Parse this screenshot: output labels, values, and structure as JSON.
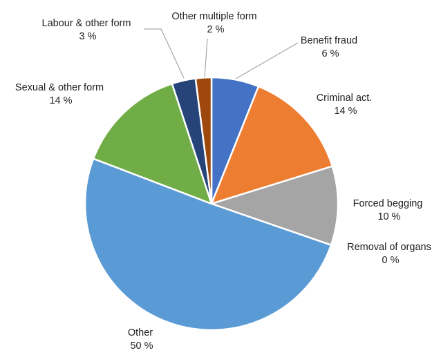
{
  "chart_data": {
    "type": "pie",
    "title": "",
    "legend": "none",
    "start": "top, clockwise",
    "slices": [
      {
        "label": "Benefit fraud",
        "value": 6,
        "display": "6 %",
        "color": "#4472c4"
      },
      {
        "label": "Criminal act.",
        "value": 14,
        "display": "14 %",
        "color": "#ed7d31"
      },
      {
        "label": "Forced begging",
        "value": 10,
        "display": "10 %",
        "color": "#a5a5a5"
      },
      {
        "label": "Removal of organs",
        "value": 0,
        "display": "0 %",
        "color": "#ffc000"
      },
      {
        "label": "Other",
        "value": 50,
        "display": "50 %",
        "color": "#5b9bd5"
      },
      {
        "label": "Sexual & other form",
        "value": 14,
        "display": "14 %",
        "color": "#70ad47"
      },
      {
        "label": "Labour & other form",
        "value": 3,
        "display": "3 %",
        "color": "#264478"
      },
      {
        "label": "Other multiple form",
        "value": 2,
        "display": "2 %",
        "color": "#9e480e"
      }
    ]
  }
}
